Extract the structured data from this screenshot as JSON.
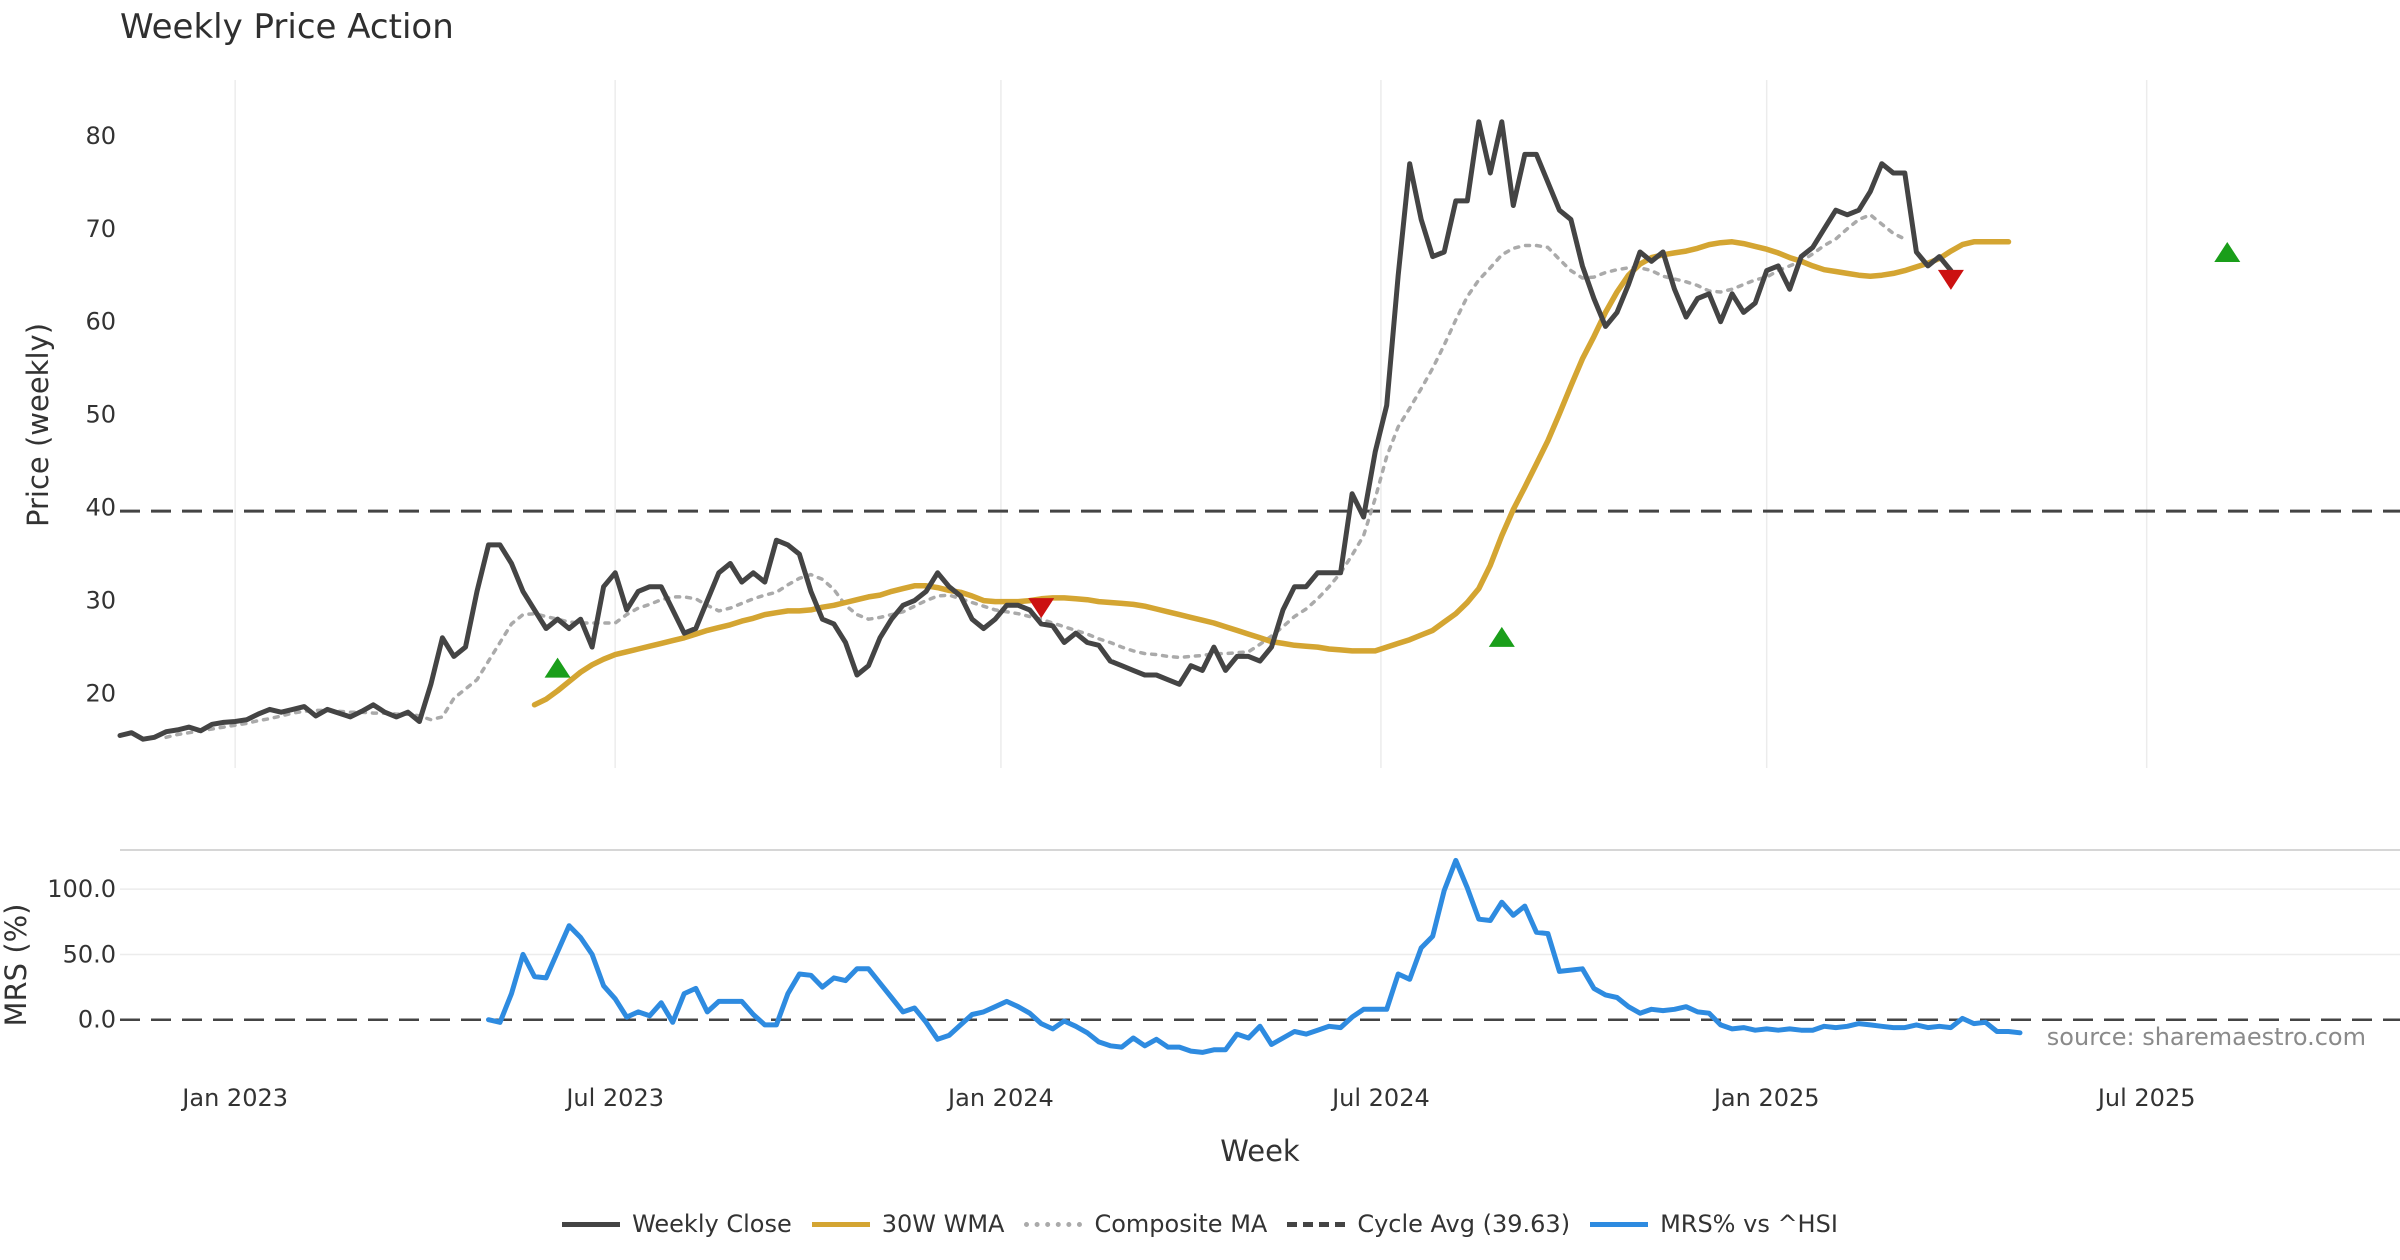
{
  "chart_data": {
    "type": "line",
    "title": "Weekly Price Action",
    "xlabel": "Week",
    "x_ticks": [
      "Jan 2023",
      "Jul 2023",
      "Jan 2024",
      "Jul 2024",
      "Jan 2025",
      "Jul 2025"
    ],
    "x_tick_weeks": [
      10,
      43,
      76.5,
      109.5,
      143,
      176
    ],
    "week_range": [
      0,
      198
    ],
    "source_note": "source: sharemaestro.com",
    "price_panel": {
      "ylabel": "Price (weekly)",
      "ylim": [
        12,
        86
      ],
      "yticks": [
        20,
        30,
        40,
        50,
        60,
        70,
        80
      ],
      "grid": "vertical",
      "series": [
        {
          "name": "Weekly Close",
          "color": "#444444",
          "style": "solid",
          "start_week": 0,
          "values": [
            15.5,
            15.8,
            15.1,
            15.3,
            15.9,
            16.1,
            16.4,
            16.0,
            16.7,
            16.9,
            17.0,
            17.2,
            17.8,
            18.3,
            18.0,
            18.3,
            18.6,
            17.6,
            18.3,
            17.9,
            17.5,
            18.1,
            18.8,
            18.0,
            17.5,
            18.0,
            17.0,
            21.0,
            26.0,
            24.0,
            25.0,
            31.0,
            36.0,
            36.0,
            34.0,
            31.0,
            29.0,
            27.0,
            28.0,
            27.0,
            28.0,
            25.0,
            31.5,
            33.0,
            29.0,
            31.0,
            31.5,
            31.5,
            29.0,
            26.5,
            27.0,
            30.0,
            33.0,
            34.0,
            32.0,
            33.0,
            32.0,
            36.5,
            36.0,
            35.0,
            31.0,
            28.0,
            27.5,
            25.5,
            22.0,
            23.0,
            26.0,
            28.0,
            29.5,
            30.0,
            31.0,
            33.0,
            31.5,
            30.5,
            28.0,
            27.0,
            28.0,
            29.5,
            29.5,
            29.0,
            27.5,
            27.3,
            25.5,
            26.5,
            25.5,
            25.2,
            23.5,
            23.0,
            22.5,
            22.0,
            22.0,
            21.5,
            21.0,
            23.0,
            22.5,
            25.0,
            22.5,
            24.0,
            24.0,
            23.5,
            25.0,
            29.0,
            31.5,
            31.5,
            33.0,
            33.0,
            33.0,
            41.5,
            39.0,
            46.0,
            51.0,
            65.0,
            77.0,
            71.0,
            67.0,
            67.5,
            73.0,
            73.0,
            81.5,
            76.0,
            81.5,
            72.5,
            78.0,
            78.0,
            75.0,
            72.0,
            71.0,
            66.0,
            62.5,
            59.5,
            61.0,
            64.0,
            67.5,
            66.5,
            67.5,
            63.5,
            60.5,
            62.5,
            63.0,
            60.0,
            63.0,
            61.0,
            62.0,
            65.5,
            66.0,
            63.5,
            67.0,
            68.0,
            70.0,
            72.0,
            71.5,
            72.0,
            74.0,
            77.0,
            76.0,
            76.0,
            67.5,
            66.0,
            67.0,
            65.5
          ]
        },
        {
          "name": "30W WMA",
          "color": "#d4a532",
          "style": "solid",
          "start_week": 36,
          "values": [
            18.8,
            19.4,
            20.3,
            21.3,
            22.3,
            23.1,
            23.7,
            24.2,
            24.5,
            24.8,
            25.1,
            25.4,
            25.7,
            26.0,
            26.4,
            26.8,
            27.1,
            27.4,
            27.8,
            28.1,
            28.5,
            28.7,
            28.9,
            28.9,
            29.0,
            29.3,
            29.5,
            29.8,
            30.1,
            30.4,
            30.6,
            31.0,
            31.3,
            31.6,
            31.6,
            31.4,
            31.1,
            30.9,
            30.5,
            30.0,
            29.9,
            29.9,
            29.9,
            30.0,
            30.2,
            30.3,
            30.3,
            30.2,
            30.1,
            29.9,
            29.8,
            29.7,
            29.6,
            29.4,
            29.1,
            28.8,
            28.5,
            28.2,
            27.9,
            27.6,
            27.2,
            26.8,
            26.4,
            26.0,
            25.6,
            25.4,
            25.2,
            25.1,
            25.0,
            24.8,
            24.7,
            24.6,
            24.6,
            24.6,
            25.0,
            25.4,
            25.8,
            26.3,
            26.8,
            27.7,
            28.6,
            29.8,
            31.3,
            33.8,
            37.0,
            39.8,
            42.2,
            44.7,
            47.2,
            50.1,
            53.1,
            56.0,
            58.4,
            61.0,
            63.2,
            65.0,
            66.2,
            66.9,
            67.2,
            67.4,
            67.6,
            67.9,
            68.3,
            68.5,
            68.6,
            68.4,
            68.1,
            67.8,
            67.4,
            66.9,
            66.5,
            66.0,
            65.6,
            65.4,
            65.2,
            65.0,
            64.9,
            65.0,
            65.2,
            65.5,
            65.9,
            66.3,
            66.8,
            67.6,
            68.3,
            68.6,
            68.6,
            68.6,
            68.6
          ]
        },
        {
          "name": "Composite MA",
          "color": "#aaaaaa",
          "style": "dotted",
          "start_week": 4,
          "values": [
            15.3,
            15.6,
            15.8,
            16.0,
            16.2,
            16.4,
            16.6,
            16.8,
            17.1,
            17.3,
            17.6,
            17.9,
            18.1,
            18.2,
            18.2,
            18.1,
            18.0,
            18.0,
            17.9,
            17.9,
            17.8,
            17.8,
            17.6,
            17.2,
            17.5,
            19.5,
            20.5,
            21.5,
            23.5,
            25.5,
            27.5,
            28.5,
            28.6,
            28.3,
            28.0,
            27.7,
            27.6,
            27.6,
            27.6,
            27.6,
            28.5,
            29.2,
            29.6,
            30.1,
            30.4,
            30.4,
            30.2,
            29.5,
            28.9,
            29.2,
            29.7,
            30.2,
            30.6,
            30.9,
            31.7,
            32.4,
            32.8,
            32.3,
            31.2,
            29.5,
            28.5,
            28.0,
            28.2,
            28.5,
            28.8,
            29.4,
            30.0,
            30.5,
            30.6,
            30.2,
            29.8,
            29.4,
            29.0,
            28.8,
            28.6,
            28.3,
            28.0,
            27.6,
            27.2,
            26.8,
            26.4,
            25.9,
            25.5,
            25.0,
            24.6,
            24.3,
            24.2,
            24.0,
            23.9,
            24.0,
            24.1,
            24.3,
            24.3,
            24.4,
            24.5,
            25.3,
            26.2,
            27.2,
            28.3,
            29.1,
            30.2,
            31.5,
            33.0,
            34.9,
            37.0,
            41.0,
            45.5,
            48.7,
            50.7,
            52.8,
            55.0,
            57.5,
            60.2,
            62.7,
            64.5,
            65.8,
            67.2,
            67.9,
            68.2,
            68.2,
            68.0,
            66.7,
            65.5,
            64.7,
            64.8,
            65.3,
            65.6,
            65.8,
            65.8,
            65.5,
            64.9,
            64.6,
            64.3,
            63.9,
            63.3,
            63.2,
            63.5,
            64.0,
            64.5,
            64.8,
            65.5,
            66.0,
            66.5,
            67.3,
            68.2,
            68.9,
            70.0,
            71.0,
            71.5,
            70.5,
            69.5,
            68.9
          ]
        }
      ],
      "cycle_avg": {
        "name": "Cycle Avg (39.63)",
        "value": 39.63,
        "color": "#444444",
        "style": "dashed"
      },
      "signals": [
        {
          "week": 38,
          "price": 22.8,
          "type": "buy"
        },
        {
          "week": 80,
          "price": 29.2,
          "type": "sell"
        },
        {
          "week": 120,
          "price": 26.1,
          "type": "buy"
        },
        {
          "week": 159,
          "price": 64.5,
          "type": "sell"
        },
        {
          "week": 183,
          "price": 67.5,
          "type": "buy"
        }
      ]
    },
    "mrs_panel": {
      "ylabel": "MRS (%)",
      "ylim": [
        -50,
        130
      ],
      "yticks": [
        0.0,
        50.0,
        100.0
      ],
      "ytick_labels": [
        "0.0",
        "50.0",
        "100.0"
      ],
      "zero_line": 0,
      "series": [
        {
          "name": "MRS% vs ^HSI",
          "color": "#2e8be0",
          "style": "solid",
          "start_week": 32,
          "values": [
            0,
            -2,
            20,
            50,
            33,
            32,
            52,
            72,
            63,
            50,
            26,
            16,
            2,
            6,
            3,
            13,
            -2,
            20,
            24,
            6,
            14,
            14,
            14,
            4,
            -4,
            -4,
            20,
            35,
            34,
            25,
            32,
            30,
            39,
            39,
            28,
            17,
            6,
            9,
            -2,
            -15,
            -12,
            -4,
            4,
            6,
            10,
            14,
            10,
            5,
            -3,
            -7,
            -1,
            -5,
            -10,
            -17,
            -20,
            -21,
            -14,
            -20,
            -15,
            -21,
            -21,
            -24,
            -25,
            -23,
            -23,
            -11,
            -14,
            -5,
            -19,
            -14,
            -9,
            -11,
            -8,
            -5,
            -6,
            2,
            8,
            8,
            8,
            35,
            31,
            55,
            64,
            99,
            122,
            101,
            77,
            76,
            90,
            80,
            87,
            67,
            66,
            37,
            38,
            39,
            24,
            19,
            17,
            10,
            5,
            8,
            7,
            8,
            10,
            6,
            5,
            -4,
            -7,
            -6,
            -8,
            -7,
            -8,
            -7,
            -8,
            -8,
            -5,
            -6,
            -5,
            -3,
            -4,
            -5,
            -6,
            -6,
            -4,
            -6,
            -5,
            -6,
            1,
            -3,
            -2,
            -9,
            -9,
            -10
          ]
        }
      ]
    }
  },
  "legend": [
    {
      "label": "Weekly Close",
      "color": "#444444",
      "style": "solid"
    },
    {
      "label": "30W WMA",
      "color": "#d4a532",
      "style": "solid"
    },
    {
      "label": "Composite MA",
      "color": "#aaaaaa",
      "style": "dotted"
    },
    {
      "label": "Cycle Avg (39.63)",
      "color": "#444444",
      "style": "dashed"
    },
    {
      "label": "MRS% vs ^HSI",
      "color": "#2e8be0",
      "style": "solid"
    }
  ]
}
